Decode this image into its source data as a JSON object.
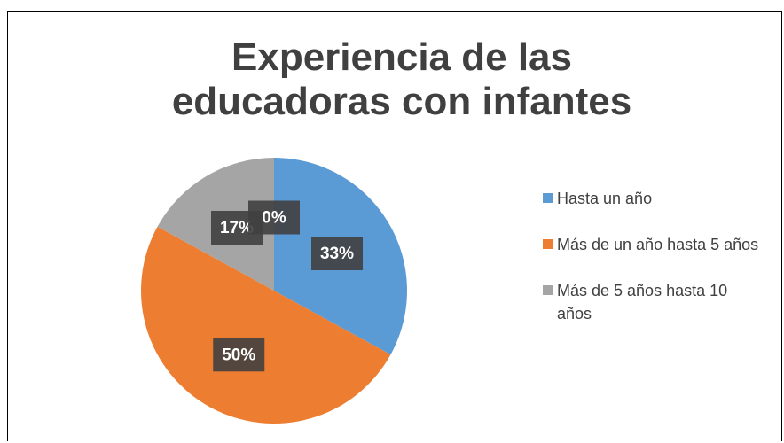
{
  "chart_data": {
    "type": "pie",
    "title": "Experiencia de las educadoras con infantes",
    "categories": [
      "Hasta un año",
      "Más de un año hasta 5 años",
      "Más de 5 años hasta 10 años",
      null
    ],
    "values": [
      33,
      50,
      17,
      0
    ],
    "value_labels": [
      "33%",
      "50%",
      "17%",
      "0%"
    ],
    "colors": [
      "#5b9bd5",
      "#ed7d31",
      "#a5a5a5",
      "#ffc000"
    ],
    "legend": "right"
  }
}
